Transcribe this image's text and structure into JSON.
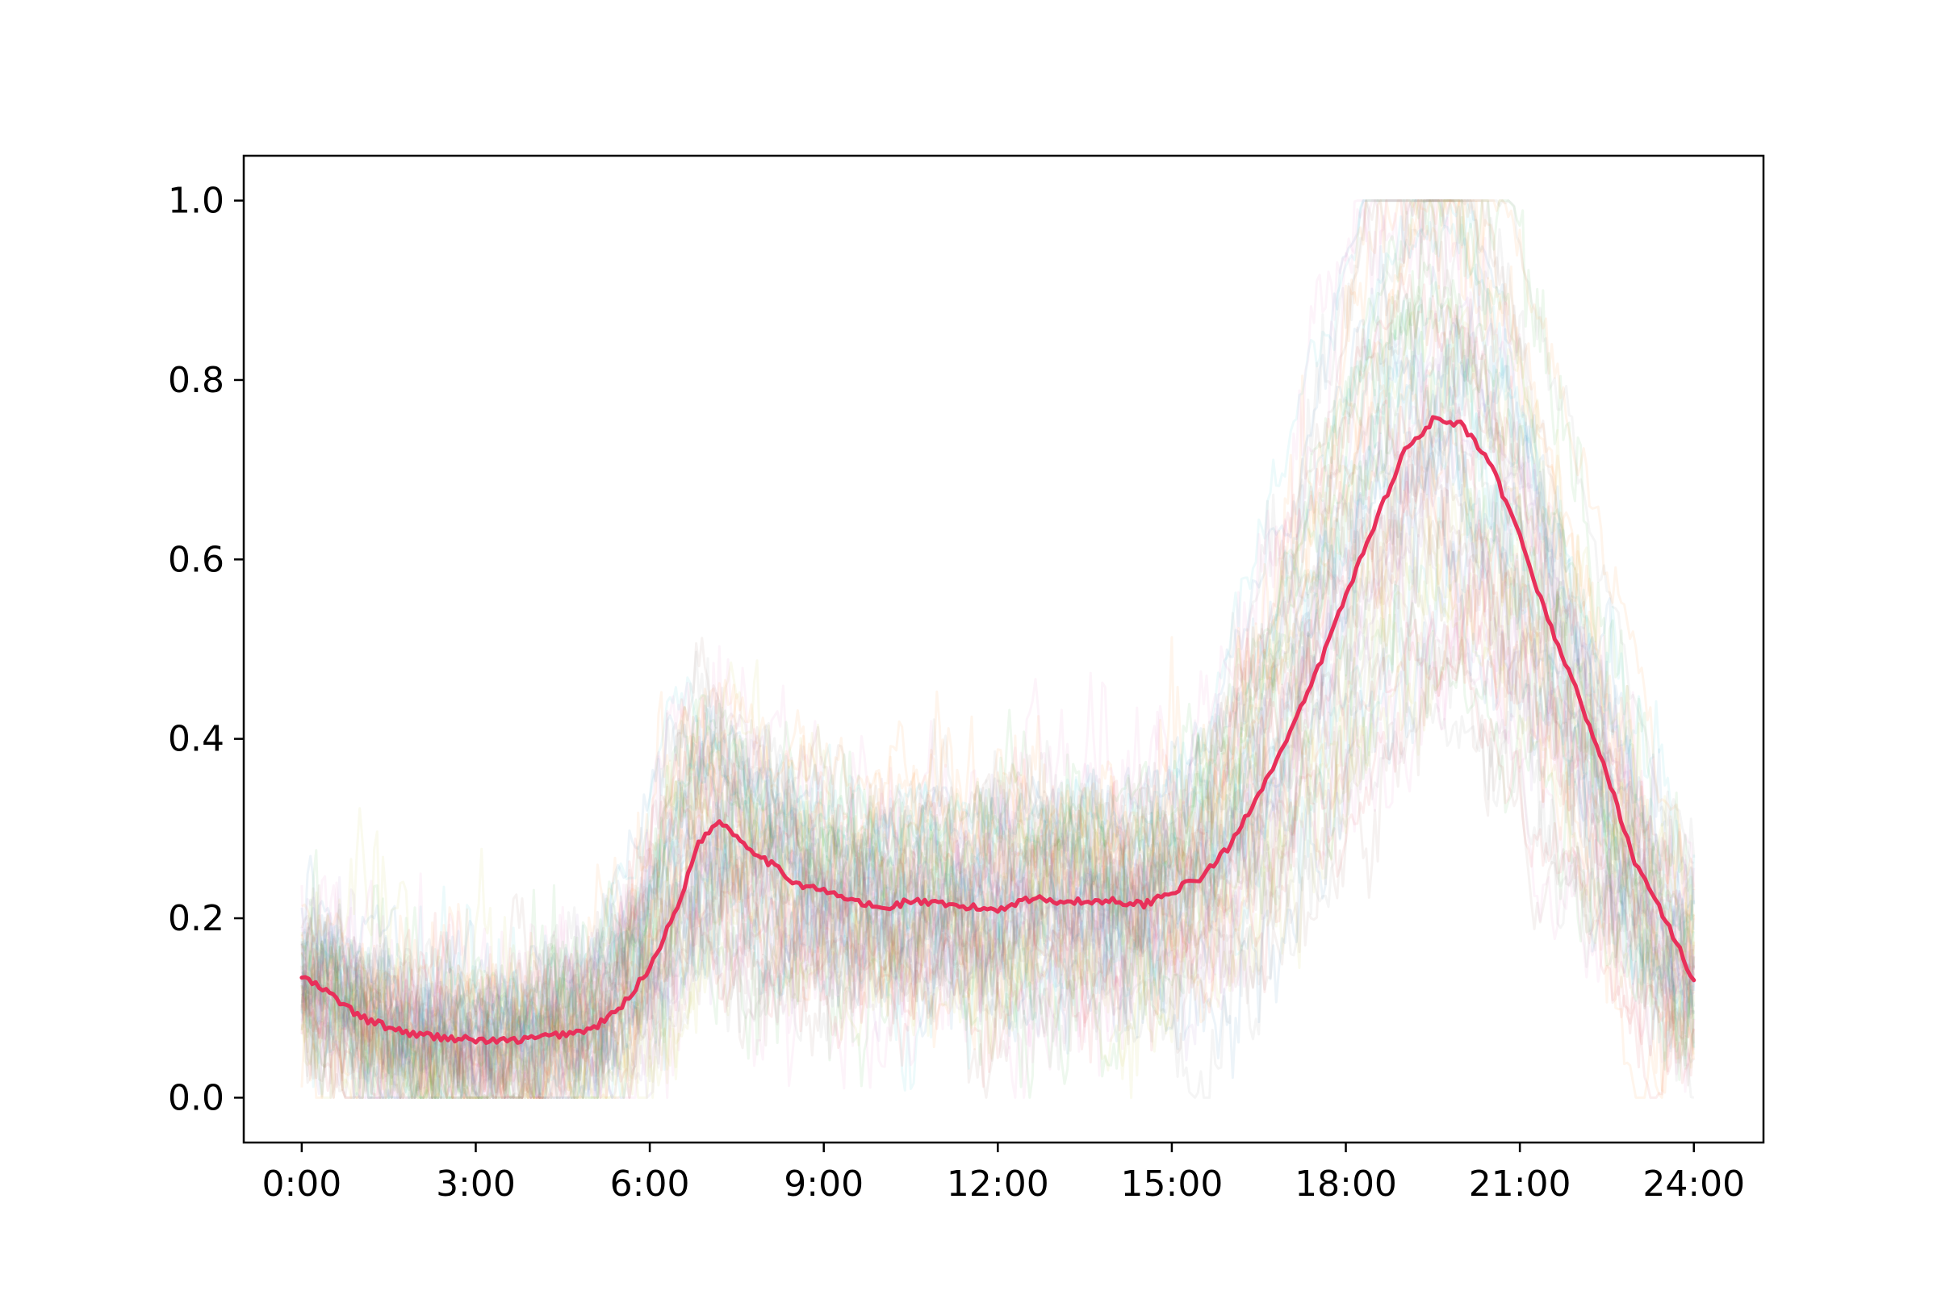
{
  "chart_data": {
    "type": "line",
    "title": "",
    "xlabel": "",
    "ylabel": "",
    "xlim": [
      -1,
      25.2
    ],
    "ylim": [
      -0.05,
      1.05
    ],
    "grid": false,
    "legend": "none",
    "x_ticks": [
      {
        "value": 0,
        "label": "0:00"
      },
      {
        "value": 3,
        "label": "3:00"
      },
      {
        "value": 6,
        "label": "6:00"
      },
      {
        "value": 9,
        "label": "9:00"
      },
      {
        "value": 12,
        "label": "12:00"
      },
      {
        "value": 15,
        "label": "15:00"
      },
      {
        "value": 18,
        "label": "18:00"
      },
      {
        "value": 21,
        "label": "21:00"
      },
      {
        "value": 24,
        "label": "24:00"
      }
    ],
    "y_ticks": [
      {
        "value": 0.0,
        "label": "0.0"
      },
      {
        "value": 0.2,
        "label": "0.2"
      },
      {
        "value": 0.4,
        "label": "0.4"
      },
      {
        "value": 0.6,
        "label": "0.6"
      },
      {
        "value": 0.8,
        "label": "0.8"
      },
      {
        "value": 1.0,
        "label": "1.0"
      }
    ],
    "background_traces": {
      "description_count": 60,
      "opacity": 0.08,
      "colors": [
        "#1f77b4",
        "#ff7f0e",
        "#2ca02c",
        "#d62728",
        "#9467bd",
        "#8c564b",
        "#e377c2",
        "#7f7f7f",
        "#bcbd22",
        "#17becf"
      ]
    },
    "mean_series": {
      "color": "#e8305a",
      "points": [
        [
          0.0,
          0.135
        ],
        [
          0.5,
          0.115
        ],
        [
          1.0,
          0.09
        ],
        [
          1.5,
          0.078
        ],
        [
          2.0,
          0.07
        ],
        [
          2.5,
          0.067
        ],
        [
          3.0,
          0.064
        ],
        [
          3.5,
          0.063
        ],
        [
          4.0,
          0.066
        ],
        [
          4.5,
          0.071
        ],
        [
          5.0,
          0.076
        ],
        [
          5.5,
          0.1
        ],
        [
          6.0,
          0.145
        ],
        [
          6.5,
          0.215
        ],
        [
          6.8,
          0.28
        ],
        [
          7.2,
          0.31
        ],
        [
          7.6,
          0.285
        ],
        [
          8.0,
          0.265
        ],
        [
          8.5,
          0.24
        ],
        [
          9.0,
          0.23
        ],
        [
          9.5,
          0.22
        ],
        [
          10.0,
          0.21
        ],
        [
          10.5,
          0.22
        ],
        [
          11.0,
          0.215
        ],
        [
          11.5,
          0.212
        ],
        [
          12.0,
          0.21
        ],
        [
          12.5,
          0.222
        ],
        [
          13.0,
          0.22
        ],
        [
          13.5,
          0.218
        ],
        [
          14.0,
          0.22
        ],
        [
          14.5,
          0.215
        ],
        [
          15.0,
          0.23
        ],
        [
          15.5,
          0.245
        ],
        [
          16.0,
          0.28
        ],
        [
          16.5,
          0.34
        ],
        [
          17.0,
          0.4
        ],
        [
          17.5,
          0.475
        ],
        [
          18.0,
          0.56
        ],
        [
          18.5,
          0.64
        ],
        [
          19.0,
          0.72
        ],
        [
          19.5,
          0.755
        ],
        [
          20.0,
          0.75
        ],
        [
          20.5,
          0.705
        ],
        [
          21.0,
          0.625
        ],
        [
          21.5,
          0.53
        ],
        [
          22.0,
          0.45
        ],
        [
          22.5,
          0.36
        ],
        [
          23.0,
          0.26
        ],
        [
          23.5,
          0.2
        ],
        [
          24.0,
          0.13
        ]
      ]
    }
  }
}
